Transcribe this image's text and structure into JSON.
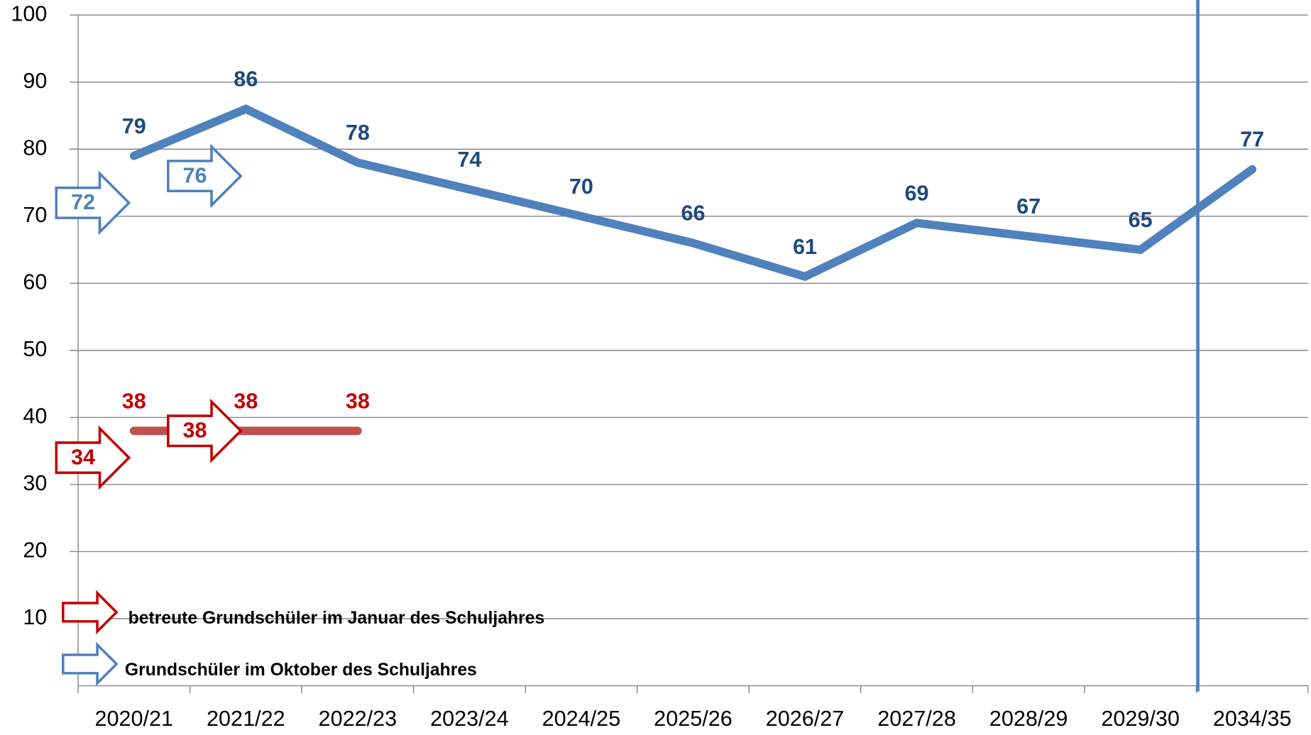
{
  "chart_data": {
    "type": "line",
    "categories": [
      "2020/21",
      "2021/22",
      "2022/23",
      "2023/24",
      "2024/25",
      "2025/26",
      "2026/27",
      "2027/28",
      "2028/29",
      "2029/30",
      "2034/35"
    ],
    "series": [
      {
        "color": "#4f81bd",
        "label_color": "#1f497d",
        "values": [
          79,
          86,
          78,
          74,
          70,
          66,
          61,
          69,
          67,
          65,
          77
        ]
      },
      {
        "color": "#c0504d",
        "label_color": "#c00000",
        "values": [
          38,
          38,
          38,
          null,
          null,
          null,
          null,
          null,
          null,
          null,
          null
        ]
      }
    ],
    "arrows": [
      {
        "name": "betreute Grundschüler im Januar des Schuljahres",
        "color": "#c00000",
        "values": [
          34,
          38
        ]
      },
      {
        "name": "Grundschüler im Oktober des Schuljahres",
        "color": "#4f81bd",
        "values": [
          72,
          76
        ]
      }
    ],
    "ylim": [
      0,
      100
    ],
    "yticks": [
      10,
      20,
      30,
      40,
      50,
      60,
      70,
      80,
      90,
      100
    ],
    "grid": true
  }
}
